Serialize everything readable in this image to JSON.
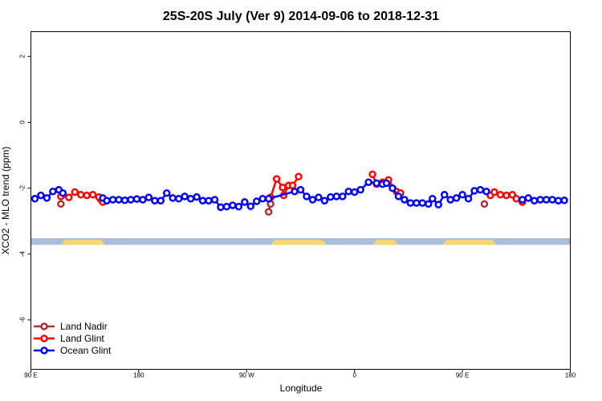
{
  "chart_data": {
    "type": "line",
    "title": "25S-20S July (Ver 9)   2014-09-06 to 2018-12-31",
    "xlabel": "Longitude",
    "ylabel": "XCO2 - MLO trend (ppm)",
    "xlim": [
      -90,
      180
    ],
    "ylim": [
      -7.5,
      2.75
    ],
    "x_ticks": [
      {
        "value": -90,
        "label": "90 E"
      },
      {
        "value": -36,
        "label": "180"
      },
      {
        "value": 18,
        "label": "90 W"
      },
      {
        "value": 72,
        "label": "0"
      },
      {
        "value": 126,
        "label": "90 E"
      },
      {
        "value": 180,
        "label": "180"
      }
    ],
    "y_ticks": [
      {
        "value": 2,
        "label": "2"
      },
      {
        "value": 0,
        "label": "0"
      },
      {
        "value": -2,
        "label": "-2"
      },
      {
        "value": -4,
        "label": "-4"
      },
      {
        "value": -6,
        "label": "-6"
      }
    ],
    "grid": false,
    "legend_position": "bottom-left",
    "land_strip": {
      "y_range": [
        -3.72,
        -3.52
      ],
      "ocean_color": "#a7bedc",
      "land_color": "#f9d66e",
      "land_segments": [
        [
          -75,
          -53
        ],
        [
          30,
          58
        ],
        [
          81,
          94
        ],
        [
          116,
          143
        ]
      ]
    },
    "series": [
      {
        "name": "Land Nadir",
        "color": "#a83232",
        "points": [
          [
            -75,
            -2.48
          ],
          [
            -55,
            -2.35
          ],
          [
            29,
            -2.72
          ],
          [
            30,
            -2.48
          ],
          [
            137,
            -2.48
          ]
        ]
      },
      {
        "name": "Land Glint",
        "color": "#ff0000",
        "points": [
          [
            -75,
            -2.25
          ],
          [
            -71,
            -2.28
          ],
          [
            -68,
            -2.12
          ],
          [
            -65,
            -2.2
          ],
          [
            -62,
            -2.22
          ],
          [
            -59,
            -2.2
          ],
          [
            -56,
            -2.27
          ],
          [
            -54,
            -2.42
          ],
          [
            30,
            -2.28
          ],
          [
            33,
            -1.72
          ],
          [
            36,
            -1.98
          ],
          [
            36.5,
            -2.22
          ],
          [
            39,
            -1.92
          ],
          [
            41,
            -1.92
          ],
          [
            44,
            -1.65
          ],
          [
            81,
            -1.58
          ],
          [
            83,
            -1.88
          ],
          [
            86,
            -1.82
          ],
          [
            89,
            -1.75
          ],
          [
            93,
            -2.1
          ],
          [
            95,
            -2.15
          ],
          [
            140,
            -2.22
          ],
          [
            142,
            -2.12
          ],
          [
            145,
            -2.2
          ],
          [
            148,
            -2.22
          ],
          [
            151,
            -2.2
          ],
          [
            153,
            -2.32
          ],
          [
            156,
            -2.42
          ]
        ]
      },
      {
        "name": "Ocean Glint",
        "color": "#0000ff",
        "points": [
          [
            -88,
            -2.32
          ],
          [
            -85,
            -2.22
          ],
          [
            -82,
            -2.3
          ],
          [
            -79,
            -2.1
          ],
          [
            -76,
            -2.05
          ],
          [
            -74,
            -2.15
          ],
          [
            -54,
            -2.3
          ],
          [
            -52,
            -2.38
          ],
          [
            -49,
            -2.35
          ],
          [
            -46,
            -2.35
          ],
          [
            -43,
            -2.37
          ],
          [
            -40,
            -2.35
          ],
          [
            -37,
            -2.33
          ],
          [
            -34,
            -2.35
          ],
          [
            -31,
            -2.28
          ],
          [
            -28,
            -2.38
          ],
          [
            -25,
            -2.38
          ],
          [
            -22,
            -2.15
          ],
          [
            -19,
            -2.3
          ],
          [
            -16,
            -2.32
          ],
          [
            -13,
            -2.25
          ],
          [
            -10,
            -2.32
          ],
          [
            -7,
            -2.27
          ],
          [
            -4,
            -2.38
          ],
          [
            -1,
            -2.38
          ],
          [
            2,
            -2.35
          ],
          [
            5,
            -2.58
          ],
          [
            8,
            -2.56
          ],
          [
            11,
            -2.52
          ],
          [
            14,
            -2.56
          ],
          [
            17,
            -2.42
          ],
          [
            20,
            -2.55
          ],
          [
            23,
            -2.4
          ],
          [
            26,
            -2.32
          ],
          [
            29,
            -2.32
          ],
          [
            42,
            -2.1
          ],
          [
            45,
            -2.05
          ],
          [
            48,
            -2.25
          ],
          [
            51,
            -2.35
          ],
          [
            54,
            -2.28
          ],
          [
            57,
            -2.38
          ],
          [
            60,
            -2.27
          ],
          [
            63,
            -2.25
          ],
          [
            66,
            -2.25
          ],
          [
            69,
            -2.1
          ],
          [
            72,
            -2.12
          ],
          [
            75,
            -2.05
          ],
          [
            79,
            -1.82
          ],
          [
            83,
            -1.85
          ],
          [
            86,
            -1.88
          ],
          [
            88,
            -1.85
          ],
          [
            91,
            -2.0
          ],
          [
            94,
            -2.25
          ],
          [
            97,
            -2.35
          ],
          [
            100,
            -2.45
          ],
          [
            103,
            -2.45
          ],
          [
            106,
            -2.45
          ],
          [
            109,
            -2.48
          ],
          [
            111,
            -2.32
          ],
          [
            114,
            -2.5
          ],
          [
            117,
            -2.2
          ],
          [
            120,
            -2.35
          ],
          [
            123,
            -2.3
          ],
          [
            126,
            -2.2
          ],
          [
            129,
            -2.32
          ],
          [
            132,
            -2.08
          ],
          [
            135,
            -2.05
          ],
          [
            138,
            -2.1
          ],
          [
            156,
            -2.35
          ],
          [
            159,
            -2.3
          ],
          [
            162,
            -2.38
          ],
          [
            165,
            -2.35
          ],
          [
            168,
            -2.35
          ],
          [
            171,
            -2.35
          ],
          [
            174,
            -2.38
          ],
          [
            177,
            -2.37
          ]
        ]
      }
    ]
  }
}
